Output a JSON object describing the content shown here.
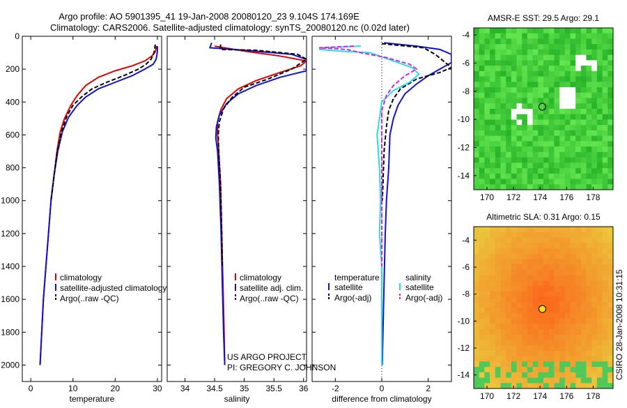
{
  "title_line1": "Argo profile: AO 5901395_41 19-Jan-2008 20080120_23 9.104S 174.169E",
  "title_line2": "Climatology: CARS2006. Satellite-adjusted climatology: synTS_20080120.nc (0.02d later)",
  "footer": {
    "project": "US ARGO PROJECT",
    "pi": "PI: GREGORY C. JOHNSON"
  },
  "side_stamp": "CSIRO 28-Jan-2008 10:31:15",
  "colors": {
    "climatology": "#e00000",
    "satellite": "#1010d0",
    "argo": "#000000",
    "salinity_sat": "#20e0e0",
    "salinity_argo": "#e020e0",
    "sst_base": "#30c030",
    "sla_base": "#f0c000"
  },
  "chart_data": [
    {
      "type": "line",
      "id": "temperature",
      "xlabel": "temperature",
      "ylabel": "",
      "xlim": [
        -2,
        31
      ],
      "ylim": [
        2100,
        0
      ],
      "xticks": [
        0,
        10,
        20,
        30
      ],
      "yticks": [
        0,
        200,
        400,
        600,
        800,
        1000,
        1200,
        1400,
        1600,
        1800,
        2000
      ],
      "legend_location": "lower-right",
      "legend": [
        "climatology",
        "satellite-adjusted climatology",
        "Argo(..raw -QC)"
      ],
      "series": [
        {
          "name": "climatology",
          "color": "#e00000",
          "dash": "",
          "points": [
            [
              29.8,
              60
            ],
            [
              29.5,
              95
            ],
            [
              28.7,
              120
            ],
            [
              27,
              150
            ],
            [
              24,
              180
            ],
            [
              20,
              210
            ],
            [
              16,
              250
            ],
            [
              13,
              300
            ],
            [
              11,
              360
            ],
            [
              9.5,
              420
            ],
            [
              8,
              500
            ],
            [
              7,
              580
            ],
            [
              6.2,
              700
            ],
            [
              5.5,
              850
            ],
            [
              4.8,
              1000
            ],
            [
              4.2,
              1200
            ],
            [
              3.6,
              1400
            ],
            [
              3,
              1600
            ],
            [
              2.6,
              1800
            ],
            [
              2.2,
              2000
            ]
          ]
        },
        {
          "name": "satellite-adjusted climatology",
          "color": "#1010d0",
          "dash": "",
          "points": [
            [
              30,
              60
            ],
            [
              30,
              95
            ],
            [
              29.7,
              140
            ],
            [
              29,
              170
            ],
            [
              27,
              200
            ],
            [
              24,
              240
            ],
            [
              20,
              280
            ],
            [
              16,
              320
            ],
            [
              13,
              370
            ],
            [
              11,
              420
            ],
            [
              9,
              490
            ],
            [
              7.5,
              580
            ],
            [
              6.4,
              700
            ],
            [
              5.5,
              850
            ],
            [
              4.8,
              1000
            ],
            [
              4.2,
              1200
            ],
            [
              3.6,
              1400
            ],
            [
              3,
              1600
            ],
            [
              2.6,
              1800
            ],
            [
              2.2,
              2000
            ]
          ]
        },
        {
          "name": "Argo(..raw -QC)",
          "color": "#000000",
          "dash": "6,3",
          "points": [
            [
              29.5,
              50
            ],
            [
              29.2,
              100
            ],
            [
              28.5,
              140
            ],
            [
              27.3,
              170
            ],
            [
              25.5,
              200
            ],
            [
              22,
              240
            ],
            [
              18,
              280
            ],
            [
              14.5,
              320
            ],
            [
              12,
              370
            ],
            [
              10,
              420
            ],
            [
              8.5,
              490
            ],
            [
              7.3,
              580
            ],
            [
              6.3,
              700
            ],
            [
              5.5,
              850
            ],
            [
              4.8,
              1000
            ]
          ]
        }
      ]
    },
    {
      "type": "line",
      "id": "salinity",
      "xlabel": "salinity",
      "xlim": [
        33.7,
        36.05
      ],
      "ylim": [
        2100,
        0
      ],
      "xticks": [
        34,
        34.5,
        35,
        35.5,
        36
      ],
      "legend_location": "lower-right",
      "legend": [
        "climatology",
        "satellite adj. clim.",
        "Argo(..raw -QC)"
      ],
      "series": [
        {
          "name": "climatology",
          "color": "#e00000",
          "dash": "",
          "points": [
            [
              34.5,
              60
            ],
            [
              35,
              90
            ],
            [
              35.6,
              120
            ],
            [
              36.05,
              150
            ],
            [
              35.95,
              180
            ],
            [
              35.6,
              220
            ],
            [
              35.2,
              270
            ],
            [
              34.9,
              320
            ],
            [
              34.7,
              380
            ],
            [
              34.6,
              450
            ],
            [
              34.55,
              520
            ],
            [
              34.55,
              600
            ],
            [
              34.57,
              700
            ],
            [
              34.6,
              900
            ],
            [
              34.62,
              1200
            ],
            [
              34.64,
              1500
            ],
            [
              34.66,
              1800
            ],
            [
              34.67,
              2000
            ]
          ]
        },
        {
          "name": "satellite adj. clim.",
          "color": "#1010d0",
          "dash": "",
          "points": [
            [
              34.45,
              40
            ],
            [
              34.42,
              70
            ],
            [
              35,
              85
            ],
            [
              35.8,
              110
            ],
            [
              36.05,
              140
            ],
            [
              36.05,
              210
            ],
            [
              35.6,
              250
            ],
            [
              35.2,
              300
            ],
            [
              34.9,
              350
            ],
            [
              34.7,
              410
            ],
            [
              34.58,
              480
            ],
            [
              34.53,
              550
            ],
            [
              34.52,
              620
            ],
            [
              34.55,
              700
            ],
            [
              34.58,
              900
            ],
            [
              34.61,
              1200
            ],
            [
              34.63,
              1500
            ],
            [
              34.65,
              1800
            ],
            [
              34.67,
              2000
            ]
          ]
        },
        {
          "name": "Argo(..raw -QC)",
          "color": "#000000",
          "dash": "6,3",
          "points": [
            [
              34.6,
              50
            ],
            [
              34.6,
              80
            ],
            [
              35.2,
              85
            ],
            [
              35.9,
              110
            ],
            [
              36.05,
              140
            ],
            [
              35.8,
              200
            ],
            [
              35.4,
              260
            ],
            [
              35,
              310
            ],
            [
              34.8,
              370
            ],
            [
              34.65,
              440
            ],
            [
              34.58,
              520
            ],
            [
              34.56,
              600
            ],
            [
              34.57,
              700
            ],
            [
              34.6,
              900
            ],
            [
              34.62,
              1200
            ],
            [
              34.63,
              1400
            ]
          ]
        }
      ]
    },
    {
      "type": "line",
      "id": "difference",
      "xlabel": "difference from climatology",
      "xlim": [
        -3,
        3
      ],
      "ylim": [
        2100,
        0
      ],
      "xticks": [
        -2,
        0,
        2
      ],
      "legend_location": "lower-center",
      "legend_headers": [
        "temperature",
        "salinity"
      ],
      "legend": [
        "satellite",
        "Argo(-adj)",
        "satellite",
        "Argo(-adj)"
      ],
      "series": [
        {
          "name": "temperature satellite",
          "color": "#1010d0",
          "dash": "",
          "points": [
            [
              0.1,
              40
            ],
            [
              1.5,
              60
            ],
            [
              2.5,
              80
            ],
            [
              3,
              110
            ],
            [
              3,
              160
            ],
            [
              2.5,
              200
            ],
            [
              2,
              240
            ],
            [
              1.5,
              290
            ],
            [
              1,
              350
            ],
            [
              0.7,
              420
            ],
            [
              0.5,
              500
            ],
            [
              0.35,
              600
            ],
            [
              0.3,
              800
            ],
            [
              0.2,
              1000
            ],
            [
              0.15,
              1200
            ],
            [
              0.1,
              1500
            ],
            [
              0.05,
              1800
            ],
            [
              0.02,
              2000
            ]
          ]
        },
        {
          "name": "temperature Argo(-adj)",
          "color": "#000000",
          "dash": "6,3",
          "points": [
            [
              0,
              45
            ],
            [
              1.8,
              70
            ],
            [
              2.3,
              110
            ],
            [
              3,
              190
            ],
            [
              2.5,
              220
            ],
            [
              1.5,
              260
            ],
            [
              0.8,
              320
            ],
            [
              0.5,
              380
            ],
            [
              0.3,
              450
            ],
            [
              0.2,
              550
            ],
            [
              0.1,
              700
            ],
            [
              0.05,
              900
            ],
            [
              0.02,
              1000
            ]
          ]
        },
        {
          "name": "salinity satellite",
          "color": "#20e0e0",
          "dash": "",
          "points": [
            [
              -0.9,
              60
            ],
            [
              -2.5,
              70
            ],
            [
              -2.7,
              80
            ],
            [
              -1.8,
              90
            ],
            [
              -0.5,
              100
            ],
            [
              0.5,
              150
            ],
            [
              1.3,
              190
            ],
            [
              1.6,
              230
            ],
            [
              1.2,
              280
            ],
            [
              0.5,
              330
            ],
            [
              0,
              400
            ],
            [
              -0.1,
              500
            ],
            [
              -0.2,
              600
            ],
            [
              -0.1,
              800
            ],
            [
              -0.05,
              1000
            ],
            [
              -0.1,
              1200
            ],
            [
              0,
              1400
            ],
            [
              0,
              1800
            ],
            [
              0,
              2000
            ]
          ]
        },
        {
          "name": "salinity Argo(-adj)",
          "color": "#e020e0",
          "dash": "6,3",
          "points": [
            [
              -1.2,
              60
            ],
            [
              -2.7,
              70
            ],
            [
              -1.5,
              80
            ],
            [
              -0.9,
              100
            ],
            [
              0.2,
              130
            ],
            [
              1.2,
              170
            ],
            [
              1.5,
              200
            ],
            [
              1,
              240
            ],
            [
              0.5,
              300
            ],
            [
              0.2,
              360
            ],
            [
              0,
              450
            ],
            [
              0,
              600
            ],
            [
              0,
              800
            ],
            [
              0,
              1000
            ],
            [
              0,
              1400
            ]
          ]
        }
      ]
    },
    {
      "type": "heatmap",
      "id": "sst",
      "title": "AMSR-E SST: 29.5 Argo: 29.1",
      "xlim": [
        169,
        179.5
      ],
      "ylim": [
        -15,
        -3.5
      ],
      "xticks": [
        170,
        172,
        174,
        176,
        178
      ],
      "yticks": [
        -4,
        -6,
        -8,
        -10,
        -12,
        -14
      ],
      "marker": [
        174.169,
        -9.104
      ]
    },
    {
      "type": "heatmap",
      "id": "sla",
      "title": "Altimetric SLA: 0.31 Argo: 0.15",
      "xlim": [
        169,
        179.5
      ],
      "ylim": [
        -15,
        -3
      ],
      "xticks": [
        170,
        172,
        174,
        176,
        178
      ],
      "yticks": [
        -4,
        -6,
        -8,
        -10,
        -12,
        -14
      ],
      "marker": [
        174.169,
        -9.104
      ]
    }
  ]
}
